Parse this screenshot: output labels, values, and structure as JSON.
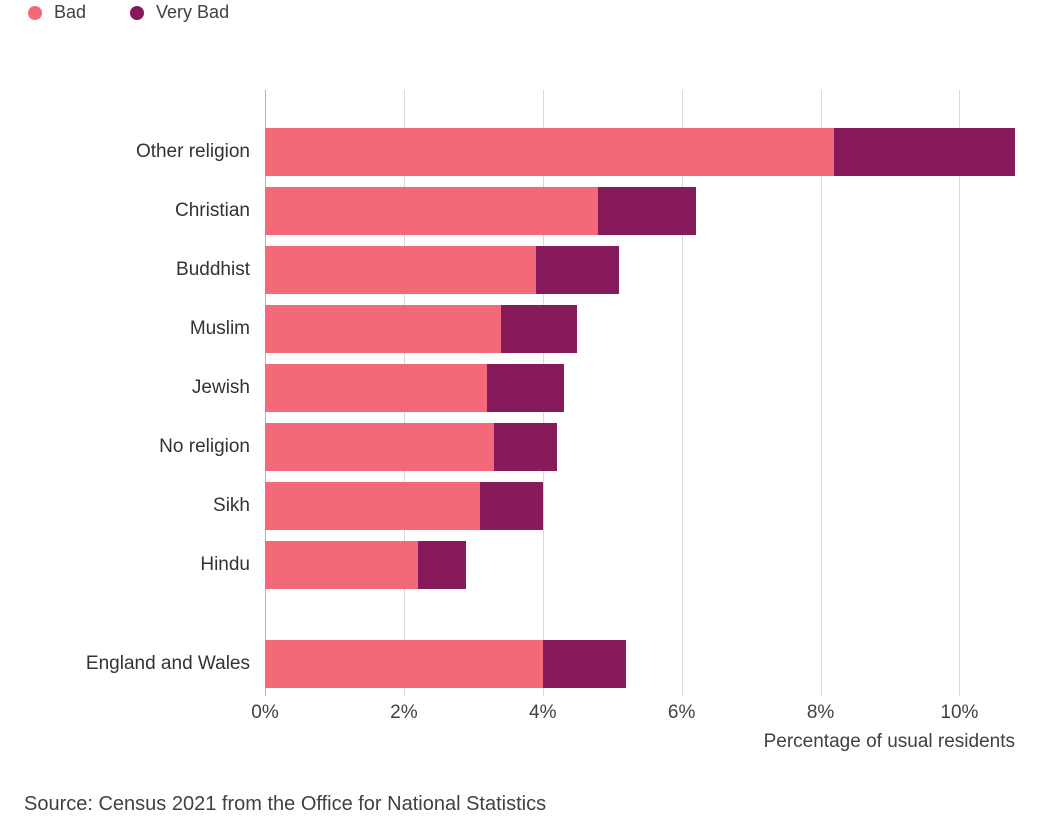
{
  "legend": {
    "items": [
      {
        "label": "Bad",
        "color": "#f4697a"
      },
      {
        "label": "Very Bad",
        "color": "#871a5b"
      }
    ]
  },
  "chart_data": {
    "type": "bar",
    "orientation": "horizontal",
    "stacked": true,
    "categories": [
      "Other religion",
      "Christian",
      "Buddhist",
      "Muslim",
      "Jewish",
      "No religion",
      "Sikh",
      "Hindu",
      "England and Wales"
    ],
    "series": [
      {
        "name": "Bad",
        "color": "#f4697a",
        "values": [
          8.2,
          4.8,
          3.9,
          3.4,
          3.2,
          3.3,
          3.1,
          2.2,
          4.0
        ]
      },
      {
        "name": "Very Bad",
        "color": "#871a5b",
        "values": [
          2.6,
          1.4,
          1.2,
          1.1,
          1.1,
          0.9,
          0.9,
          0.7,
          1.2
        ]
      }
    ],
    "xlabel": "Percentage of usual residents",
    "x_ticks": [
      "0%",
      "2%",
      "4%",
      "6%",
      "8%",
      "10%"
    ],
    "x_tick_values": [
      0,
      2,
      4,
      6,
      8,
      10
    ],
    "xlim": [
      0,
      10.8
    ],
    "separator_before_index": 8,
    "grid": "vertical",
    "legend_position": "top-left"
  },
  "source": "Source: Census 2021 from the Office for National Statistics"
}
